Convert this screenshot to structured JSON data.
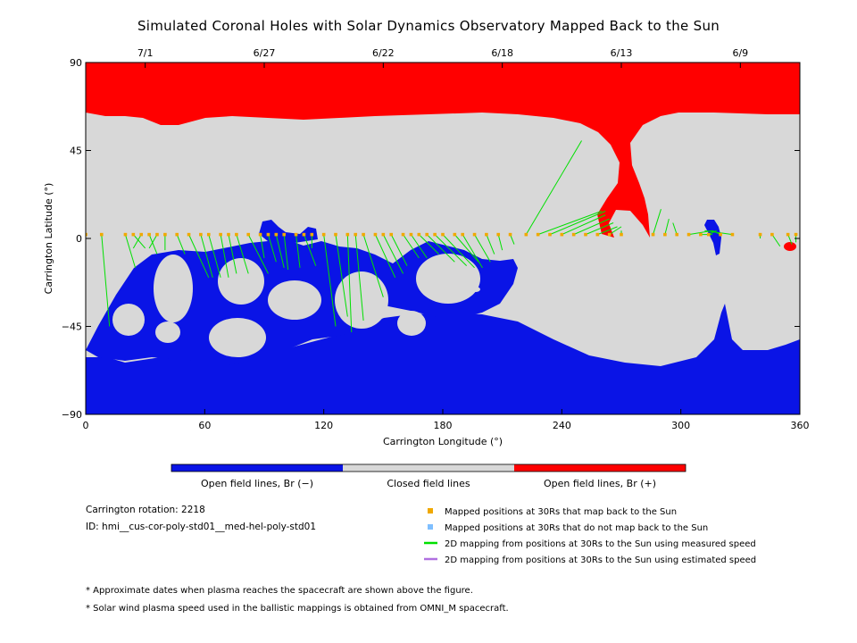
{
  "chart_data": {
    "type": "heatmap",
    "title": "Simulated Coronal Holes with Solar Dynamics Observatory Mapped Back to the Sun",
    "xlabel": "Carrington Longitude (°)",
    "ylabel": "Carrington Latitude (°)",
    "xlim": [
      0,
      360
    ],
    "ylim": [
      -90,
      90
    ],
    "x_ticks": [
      "0",
      "60",
      "120",
      "180",
      "240",
      "300",
      "360"
    ],
    "y_ticks": [
      "90",
      "45",
      "0",
      "−45",
      "−90"
    ],
    "top_axis_dates": [
      {
        "label": "7/1",
        "lon": 30
      },
      {
        "label": "6/27",
        "lon": 90
      },
      {
        "label": "6/22",
        "lon": 150
      },
      {
        "label": "6/18",
        "lon": 210
      },
      {
        "label": "6/13",
        "lon": 270
      },
      {
        "label": "6/9",
        "lon": 330
      }
    ],
    "colorbar": {
      "segments": [
        {
          "label": "Open field lines, Br (−)",
          "color": "#0a14e6"
        },
        {
          "label": "Closed field lines",
          "color": "#d8d8d8"
        },
        {
          "label": "Open field lines, Br (+)",
          "color": "#ff0000"
        }
      ]
    },
    "colors": {
      "negative": "#0a14e6",
      "closed": "#d8d8d8",
      "positive": "#ff0000",
      "mapped": "#f0a800",
      "unmapped": "#7fbfff",
      "measured": "#00e000",
      "estimated": "#b070e0"
    },
    "mappings": [
      {
        "lon": 0,
        "to_lon": 0,
        "to_lat": -10
      },
      {
        "lon": 8,
        "to_lon": 12,
        "to_lat": -45
      },
      {
        "lon": 20,
        "to_lon": 25,
        "to_lat": -15
      },
      {
        "lon": 24,
        "to_lon": 30,
        "to_lat": -5
      },
      {
        "lon": 28,
        "to_lon": 24,
        "to_lat": -5
      },
      {
        "lon": 32,
        "to_lon": 36,
        "to_lat": -8
      },
      {
        "lon": 36,
        "to_lon": 32,
        "to_lat": -5
      },
      {
        "lon": 40,
        "to_lon": 40,
        "to_lat": -6
      },
      {
        "lon": 46,
        "to_lon": 50,
        "to_lat": -8
      },
      {
        "lon": 52,
        "to_lon": 62,
        "to_lat": -20
      },
      {
        "lon": 58,
        "to_lon": 64,
        "to_lat": -20
      },
      {
        "lon": 62,
        "to_lon": 68,
        "to_lat": -20
      },
      {
        "lon": 68,
        "to_lon": 72,
        "to_lat": -20
      },
      {
        "lon": 72,
        "to_lon": 76,
        "to_lat": -18
      },
      {
        "lon": 76,
        "to_lon": 82,
        "to_lat": -18
      },
      {
        "lon": 82,
        "to_lon": 92,
        "to_lat": -18
      },
      {
        "lon": 88,
        "to_lon": 90,
        "to_lat": -10
      },
      {
        "lon": 92,
        "to_lon": 96,
        "to_lat": -12
      },
      {
        "lon": 96,
        "to_lon": 100,
        "to_lat": -15
      },
      {
        "lon": 100,
        "to_lon": 102,
        "to_lat": -16
      },
      {
        "lon": 106,
        "to_lon": 108,
        "to_lat": -15
      },
      {
        "lon": 110,
        "to_lon": 116,
        "to_lat": -14
      },
      {
        "lon": 114,
        "to_lon": 114,
        "to_lat": -5
      },
      {
        "lon": 120,
        "to_lon": 126,
        "to_lat": -45
      },
      {
        "lon": 126,
        "to_lon": 132,
        "to_lat": -40
      },
      {
        "lon": 132,
        "to_lon": 134,
        "to_lat": -48
      },
      {
        "lon": 136,
        "to_lon": 140,
        "to_lat": -42
      },
      {
        "lon": 140,
        "to_lon": 150,
        "to_lat": -30
      },
      {
        "lon": 146,
        "to_lon": 156,
        "to_lat": -20
      },
      {
        "lon": 150,
        "to_lon": 160,
        "to_lat": -18
      },
      {
        "lon": 154,
        "to_lon": 162,
        "to_lat": -14
      },
      {
        "lon": 160,
        "to_lon": 168,
        "to_lat": -10
      },
      {
        "lon": 164,
        "to_lon": 172,
        "to_lat": -10
      },
      {
        "lon": 168,
        "to_lon": 178,
        "to_lat": -8
      },
      {
        "lon": 172,
        "to_lon": 186,
        "to_lat": -12
      },
      {
        "lon": 176,
        "to_lon": 192,
        "to_lat": -14
      },
      {
        "lon": 180,
        "to_lon": 196,
        "to_lat": -15
      },
      {
        "lon": 186,
        "to_lon": 198,
        "to_lat": -12
      },
      {
        "lon": 190,
        "to_lon": 200,
        "to_lat": -15
      },
      {
        "lon": 196,
        "to_lon": 204,
        "to_lat": -12
      },
      {
        "lon": 202,
        "to_lon": 206,
        "to_lat": -8
      },
      {
        "lon": 208,
        "to_lon": 210,
        "to_lat": -6
      },
      {
        "lon": 214,
        "to_lon": 216,
        "to_lat": -3
      },
      {
        "lon": 222,
        "to_lon": 250,
        "to_lat": 50
      },
      {
        "lon": 228,
        "to_lon": 260,
        "to_lat": 14
      },
      {
        "lon": 234,
        "to_lon": 262,
        "to_lat": 14
      },
      {
        "lon": 240,
        "to_lon": 262,
        "to_lat": 12
      },
      {
        "lon": 246,
        "to_lon": 264,
        "to_lat": 10
      },
      {
        "lon": 252,
        "to_lon": 266,
        "to_lat": 8
      },
      {
        "lon": 258,
        "to_lon": 268,
        "to_lat": 6
      },
      {
        "lon": 264,
        "to_lon": 270,
        "to_lat": 6
      },
      {
        "lon": 270,
        "to_lon": 270,
        "to_lat": 4
      },
      {
        "lon": 286,
        "to_lon": 290,
        "to_lat": 15
      },
      {
        "lon": 292,
        "to_lon": 294,
        "to_lat": 10
      },
      {
        "lon": 298,
        "to_lon": 296,
        "to_lat": 8
      },
      {
        "lon": 304,
        "to_lon": 316,
        "to_lat": 4
      },
      {
        "lon": 310,
        "to_lon": 316,
        "to_lat": 2
      },
      {
        "lon": 314,
        "to_lon": 318,
        "to_lat": 4
      },
      {
        "lon": 320,
        "to_lon": 316,
        "to_lat": 4
      },
      {
        "lon": 326,
        "to_lon": 312,
        "to_lat": 4
      },
      {
        "lon": 340,
        "to_lon": 340,
        "to_lat": 0
      },
      {
        "lon": 346,
        "to_lon": 350,
        "to_lat": -4
      },
      {
        "lon": 354,
        "to_lon": 356,
        "to_lat": -3
      },
      {
        "lon": 358,
        "to_lon": 358,
        "to_lat": -2
      }
    ],
    "mapped_lat": 2
  },
  "info": {
    "rotation_label": "Carrington rotation: 2218",
    "id_label": "ID: hmi__cus-cor-poly-std01__med-hel-poly-std01"
  },
  "legend": [
    {
      "kind": "mapped",
      "text": "Mapped positions at 30Rs that map back to the Sun"
    },
    {
      "kind": "unmapped",
      "text": "Mapped positions at 30Rs that do not map back to the Sun"
    },
    {
      "kind": "measured",
      "text": "2D mapping from positions at 30Rs to the Sun using measured speed"
    },
    {
      "kind": "estimated",
      "text": "2D mapping from positions at 30Rs to the Sun using estimated speed"
    }
  ],
  "notes": [
    "* Approximate dates when plasma reaches the spacecraft are shown above the figure.",
    "* Solar wind plasma speed used in the ballistic mappings is obtained from OMNI_M spacecraft."
  ]
}
